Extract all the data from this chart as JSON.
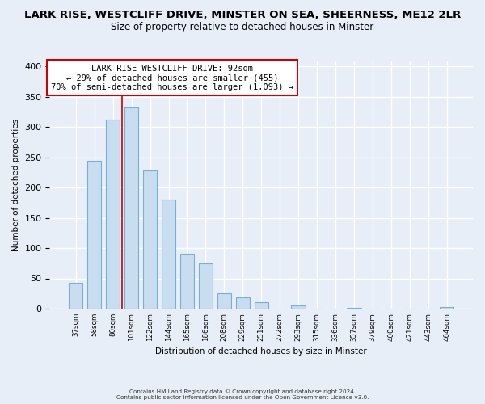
{
  "title": "LARK RISE, WESTCLIFF DRIVE, MINSTER ON SEA, SHEERNESS, ME12 2LR",
  "subtitle": "Size of property relative to detached houses in Minster",
  "xlabel": "Distribution of detached houses by size in Minster",
  "ylabel": "Number of detached properties",
  "categories": [
    "37sqm",
    "58sqm",
    "80sqm",
    "101sqm",
    "122sqm",
    "144sqm",
    "165sqm",
    "186sqm",
    "208sqm",
    "229sqm",
    "251sqm",
    "272sqm",
    "293sqm",
    "315sqm",
    "336sqm",
    "357sqm",
    "379sqm",
    "400sqm",
    "421sqm",
    "443sqm",
    "464sqm"
  ],
  "values": [
    43,
    245,
    313,
    333,
    228,
    180,
    91,
    75,
    25,
    18,
    10,
    0,
    5,
    0,
    0,
    1,
    0,
    0,
    0,
    0,
    2
  ],
  "bar_color": "#c8ddf0",
  "bar_edge_color": "#7aafd4",
  "marker_line_color": "#cc0000",
  "annotation_text_line1": "LARK RISE WESTCLIFF DRIVE: 92sqm",
  "annotation_text_line2": "← 29% of detached houses are smaller (455)",
  "annotation_text_line3": "70% of semi-detached houses are larger (1,093) →",
  "annotation_box_color": "#ffffff",
  "annotation_box_edge_color": "#cc0000",
  "ylim": [
    0,
    410
  ],
  "yticks": [
    0,
    50,
    100,
    150,
    200,
    250,
    300,
    350,
    400
  ],
  "footer_line1": "Contains HM Land Registry data © Crown copyright and database right 2024.",
  "footer_line2": "Contains public sector information licensed under the Open Government Licence v3.0.",
  "background_color": "#e8eef8",
  "plot_background_color": "#e8eef8",
  "title_fontsize": 9.5,
  "subtitle_fontsize": 8.5,
  "grid_color": "#ffffff"
}
